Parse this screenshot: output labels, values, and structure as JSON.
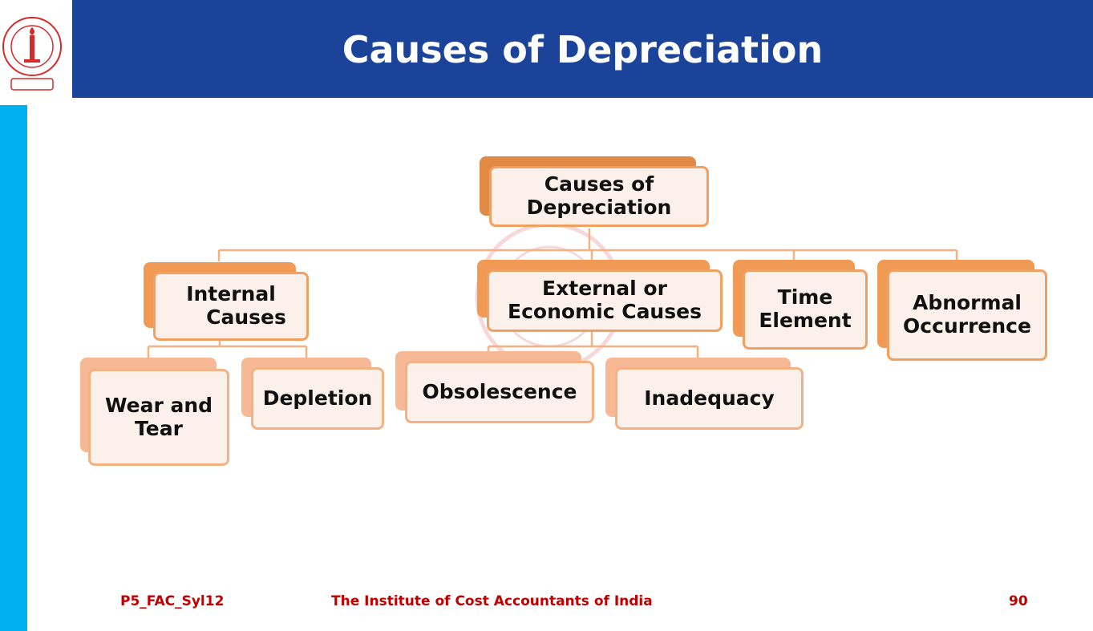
{
  "header": {
    "title": "Causes of Depreciation"
  },
  "logo": {
    "name": "The Institute of Cost Accountants of India seal",
    "text": "THE INSTITUTE OF COST ACCOUNTANTS OF INDIA"
  },
  "diagram": {
    "root": {
      "lines": [
        "Causes of",
        "Depreciation"
      ]
    },
    "level1": [
      {
        "id": "internal",
        "lines": [
          "Internal",
          "Causes"
        ]
      },
      {
        "id": "external",
        "lines": [
          "External or",
          "Economic Causes"
        ]
      },
      {
        "id": "time",
        "lines": [
          "Time",
          "Element"
        ]
      },
      {
        "id": "abnormal",
        "lines": [
          "Abnormal",
          "Occurrence"
        ]
      }
    ],
    "level2": [
      {
        "id": "wear",
        "parent": "internal",
        "lines": [
          "Wear and",
          "Tear"
        ]
      },
      {
        "id": "depletion",
        "parent": "internal",
        "lines": [
          "Depletion"
        ]
      },
      {
        "id": "obsolescence",
        "parent": "external",
        "lines": [
          "Obsolescence"
        ]
      },
      {
        "id": "inadequacy",
        "parent": "external",
        "lines": [
          "Inadequacy"
        ]
      }
    ]
  },
  "footer": {
    "code": "P5_FAC_Syl12",
    "institute": "The Institute of Cost Accountants of India",
    "page": "90"
  },
  "colors": {
    "header_bg": "#1c439a",
    "left_bar": "#00b0ef",
    "root_back": "#e08a45",
    "level1_back": "#f19a55",
    "level2_back": "#f7b896",
    "node_border": "#f0a060",
    "node_fill": "#fcf1ea",
    "footer_text": "#c00000"
  }
}
